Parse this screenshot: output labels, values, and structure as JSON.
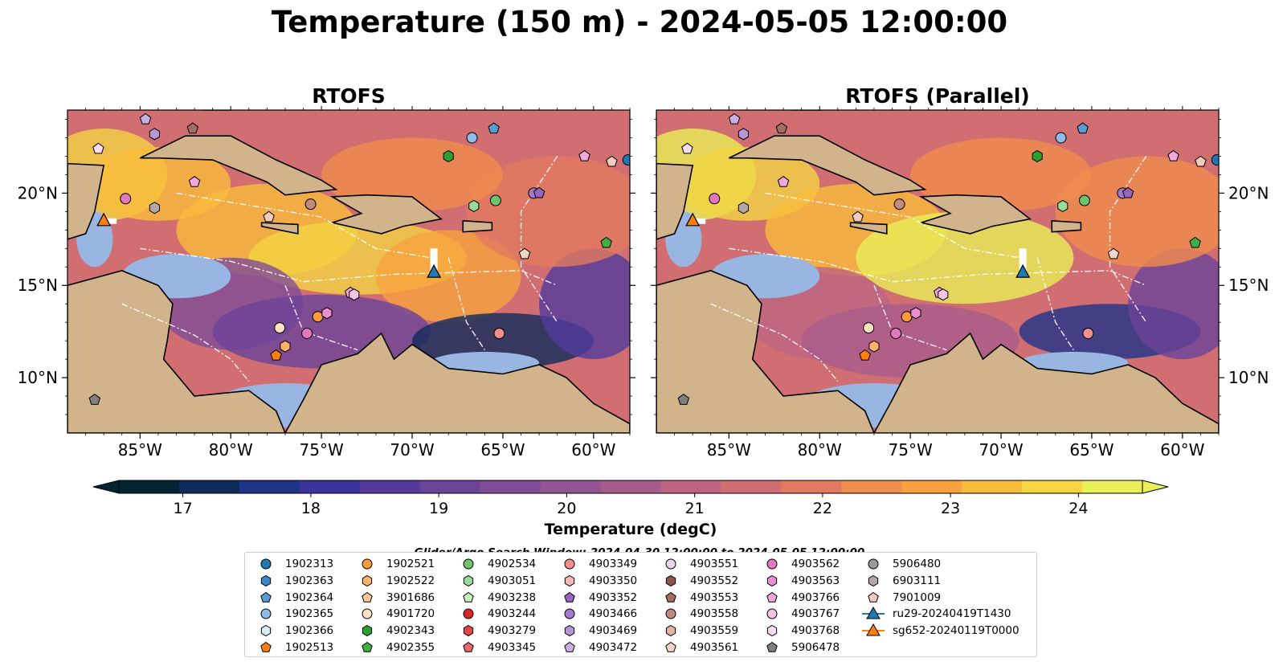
{
  "figure": {
    "title": "Temperature (150 m) - 2024-05-05 12:00:00",
    "search_window": "Glider/Argo Search Window: 2024-04-30 12:00:00 to 2024-05-05 12:00:00"
  },
  "chart_data": [
    {
      "type": "heatmap",
      "title": "RTOFS",
      "xlabel": "",
      "ylabel": "",
      "x_ticks": [
        "85°W",
        "80°W",
        "75°W",
        "70°W",
        "65°W",
        "60°W"
      ],
      "y_ticks": [
        "20°N",
        "15°N",
        "10°N"
      ],
      "xlim": [
        -89,
        -58
      ],
      "ylim": [
        7,
        24.5
      ],
      "colorscale": "thermal",
      "grid": false
    },
    {
      "type": "heatmap",
      "title": "RTOFS (Parallel)",
      "xlabel": "",
      "ylabel": "",
      "x_ticks": [
        "85°W",
        "80°W",
        "75°W",
        "70°W",
        "65°W",
        "60°W"
      ],
      "y_ticks": [
        "20°N",
        "15°N",
        "10°N"
      ],
      "xlim": [
        -89,
        -58
      ],
      "ylim": [
        7,
        24.5
      ],
      "colorscale": "thermal",
      "grid": false
    }
  ],
  "colorbar": {
    "label": "Temperature (degC)",
    "ticks": [
      "17",
      "18",
      "19",
      "20",
      "21",
      "22",
      "23",
      "24"
    ],
    "range": [
      16.5,
      24.5
    ],
    "colors": [
      "#042333",
      "#0f2b5a",
      "#1f3388",
      "#3b349a",
      "#533a9c",
      "#6b4399",
      "#7f4c96",
      "#935492",
      "#a85c8c",
      "#bd6581",
      "#d06e72",
      "#e27a5f",
      "#f08c4c",
      "#f7a23e",
      "#f9bb3b",
      "#f4d543",
      "#e9f058"
    ]
  },
  "legend": {
    "items": [
      {
        "label": "1902313",
        "marker": "circle",
        "color": "#1f77b4"
      },
      {
        "label": "1902363",
        "marker": "hexagon",
        "color": "#3a87c7"
      },
      {
        "label": "1902364",
        "marker": "pentagon",
        "color": "#5a9bd5"
      },
      {
        "label": "1902365",
        "marker": "circle",
        "color": "#8fbbe6"
      },
      {
        "label": "1902366",
        "marker": "hexagon",
        "color": "#dbeefb"
      },
      {
        "label": "1902513",
        "marker": "pentagon",
        "color": "#ff7f0e"
      },
      {
        "label": "1902521",
        "marker": "circle",
        "color": "#ff9a3c"
      },
      {
        "label": "1902522",
        "marker": "hexagon",
        "color": "#ffb26b"
      },
      {
        "label": "3901686",
        "marker": "pentagon",
        "color": "#ffc99a"
      },
      {
        "label": "4901720",
        "marker": "circle",
        "color": "#ffe1c4"
      },
      {
        "label": "4902343",
        "marker": "hexagon",
        "color": "#2ca02c"
      },
      {
        "label": "4902355",
        "marker": "pentagon",
        "color": "#3fb03f"
      },
      {
        "label": "4902534",
        "marker": "circle",
        "color": "#6cc56c"
      },
      {
        "label": "4903051",
        "marker": "hexagon",
        "color": "#98da98"
      },
      {
        "label": "4903238",
        "marker": "pentagon",
        "color": "#c8f0c0"
      },
      {
        "label": "4903244",
        "marker": "circle",
        "color": "#d62728"
      },
      {
        "label": "4903279",
        "marker": "hexagon",
        "color": "#e04848"
      },
      {
        "label": "4903345",
        "marker": "pentagon",
        "color": "#ea6a6a"
      },
      {
        "label": "4903349",
        "marker": "circle",
        "color": "#f29090"
      },
      {
        "label": "4903350",
        "marker": "hexagon",
        "color": "#f8b8b8"
      },
      {
        "label": "4903352",
        "marker": "pentagon",
        "color": "#9467bd"
      },
      {
        "label": "4903466",
        "marker": "circle",
        "color": "#a07ccb"
      },
      {
        "label": "4903469",
        "marker": "hexagon",
        "color": "#b596d8"
      },
      {
        "label": "4903472",
        "marker": "pentagon",
        "color": "#c9b1e5"
      },
      {
        "label": "4903551",
        "marker": "circle",
        "color": "#e6d6f2"
      },
      {
        "label": "4903552",
        "marker": "hexagon",
        "color": "#8c564b"
      },
      {
        "label": "4903553",
        "marker": "pentagon",
        "color": "#a16e62"
      },
      {
        "label": "4903558",
        "marker": "circle",
        "color": "#c08a7c"
      },
      {
        "label": "4903559",
        "marker": "hexagon",
        "color": "#e0b3a4"
      },
      {
        "label": "4903561",
        "marker": "pentagon",
        "color": "#f5d5c8"
      },
      {
        "label": "4903562",
        "marker": "circle",
        "color": "#e377c2"
      },
      {
        "label": "4903563",
        "marker": "hexagon",
        "color": "#ea8fcf"
      },
      {
        "label": "4903766",
        "marker": "pentagon",
        "color": "#f0a8dc"
      },
      {
        "label": "4903767",
        "marker": "circle",
        "color": "#f6c2e8"
      },
      {
        "label": "4903768",
        "marker": "hexagon",
        "color": "#fadbf2"
      },
      {
        "label": "5906478",
        "marker": "pentagon",
        "color": "#7f7f7f"
      },
      {
        "label": "5906480",
        "marker": "circle",
        "color": "#999999"
      },
      {
        "label": "6903111",
        "marker": "hexagon",
        "color": "#b5a8a0"
      },
      {
        "label": "7901009",
        "marker": "pentagon",
        "color": "#f2cbbd"
      },
      {
        "label": "ru29-20240419T1430",
        "marker": "triangle-line",
        "color": "#1f77b4"
      },
      {
        "label": "sg652-20240119T0000",
        "marker": "triangle-line",
        "color": "#ff7f0e"
      }
    ]
  }
}
